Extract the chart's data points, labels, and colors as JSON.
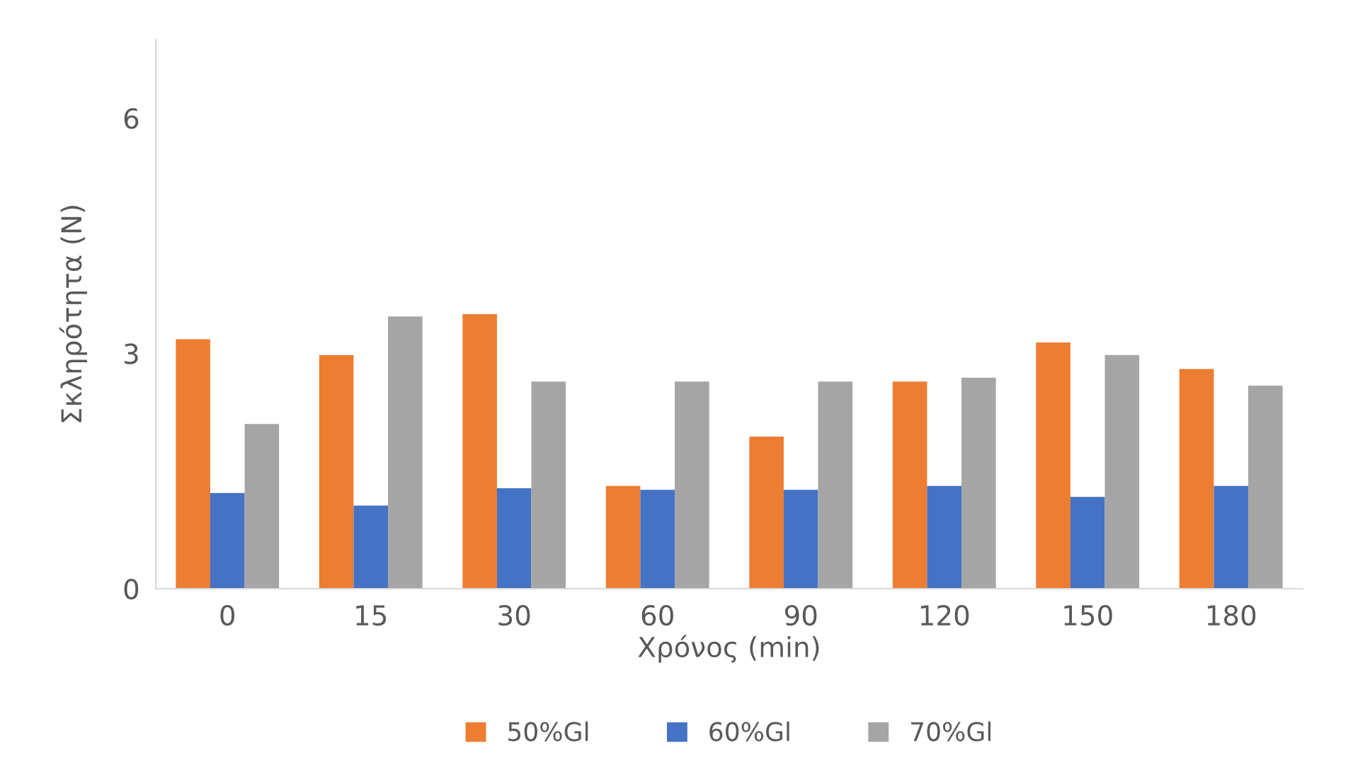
{
  "chart_data": {
    "type": "bar",
    "xlabel": "Χρόνος (min)",
    "ylabel": "Σκληρότητα (N)",
    "categories": [
      "0",
      "15",
      "30",
      "60",
      "90",
      "120",
      "150",
      "180"
    ],
    "series": [
      {
        "name": "50%Gl",
        "color": "#ed7d31",
        "values": [
          3.18,
          2.98,
          3.5,
          1.31,
          1.94,
          2.64,
          3.14,
          2.8
        ]
      },
      {
        "name": "60%Gl",
        "color": "#4472c4",
        "values": [
          1.22,
          1.06,
          1.28,
          1.26,
          1.26,
          1.31,
          1.17,
          1.31
        ]
      },
      {
        "name": "70%Gl",
        "color": "#a5a5a5",
        "values": [
          2.1,
          3.47,
          2.64,
          2.64,
          2.64,
          2.69,
          2.98,
          2.59
        ]
      }
    ],
    "ylim": [
      0,
      7
    ],
    "yticks": [
      0,
      3,
      6
    ],
    "grid": false,
    "legend": "bottom"
  }
}
